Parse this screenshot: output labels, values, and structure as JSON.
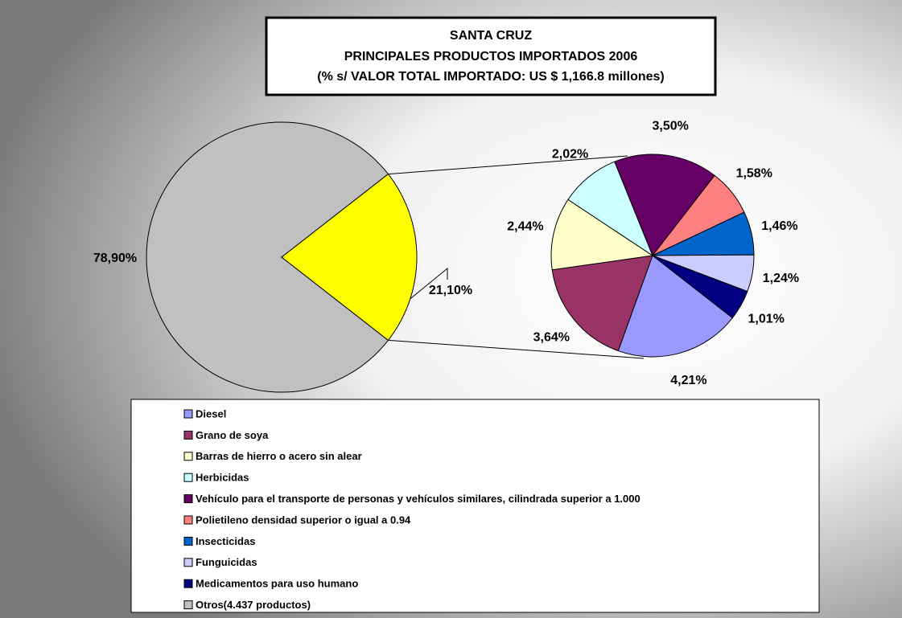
{
  "chart_data": {
    "type": "pie_of_pie",
    "title": [
      "SANTA CRUZ",
      "PRINCIPALES PRODUCTOS IMPORTADOS  2006",
      "(% s/ VALOR TOTAL IMPORTADO: US $ 1,166.8 millones)"
    ],
    "categories": [
      "Diesel",
      "Grano de soya",
      "Barras de hierro o acero sin alear",
      "Herbicidas",
      "Vehículo para el transporte de personas y vehículos similares, cilindrada superior a 1.000",
      "Polietileno densidad superior o igual a 0.94",
      "Insecticidas",
      "Funguicidas",
      "Medicamentos para uso humano",
      "Otros(4.437 productos)"
    ],
    "values": [
      4.21,
      3.64,
      2.44,
      2.02,
      3.5,
      1.58,
      1.46,
      1.24,
      1.01,
      78.9
    ],
    "value_labels": [
      "4,21%",
      "3,64%",
      "2,44%",
      "2,02%",
      "3,50%",
      "1,58%",
      "1,46%",
      "1,24%",
      "1,01%",
      "78,90%"
    ],
    "colors": [
      "#9999ff",
      "#993366",
      "#ffffcc",
      "#ccffff",
      "#660066",
      "#ff8080",
      "#0066cc",
      "#ccccff",
      "#000080",
      "#c0c0c0"
    ],
    "group_value": 21.1,
    "group_value_label": "21,10%",
    "group_color": "#ffff00"
  }
}
